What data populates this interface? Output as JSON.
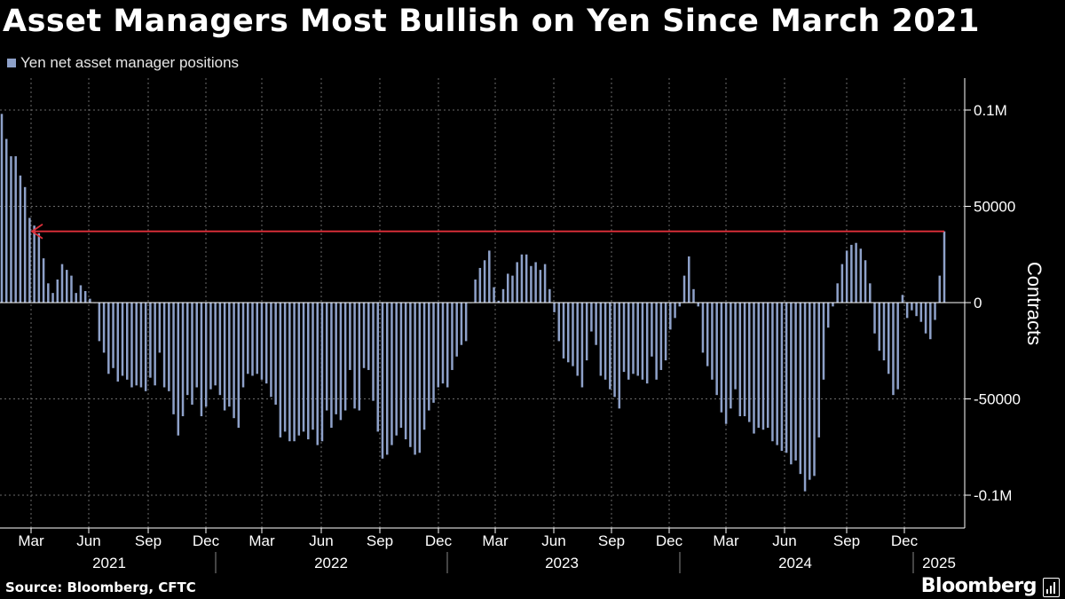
{
  "title": "Asset Managers Most Bullish on Yen Since March 2021",
  "legend_label": "Yen net asset manager positions",
  "y_axis_label": "Contracts",
  "source": "Source: Bloomberg, CFTC",
  "brand": "Bloomberg",
  "colors": {
    "bar": "#8ea1c9",
    "arrow": "#e0303a",
    "grid": "#6a6a6a",
    "axis": "#ffffff",
    "background": "#000000"
  },
  "chart_data": {
    "type": "bar",
    "ylabel": "Contracts",
    "ylim": [
      -117000,
      117000
    ],
    "yticks": [
      {
        "value": 100000,
        "label": "0.1M"
      },
      {
        "value": 50000,
        "label": "50000"
      },
      {
        "value": 0,
        "label": "0"
      },
      {
        "value": -50000,
        "label": "-50000"
      },
      {
        "value": -100000,
        "label": "-0.1M"
      }
    ],
    "month_ticks": [
      "Mar",
      "Jun",
      "Sep",
      "Dec",
      "Mar",
      "Jun",
      "Sep",
      "Dec",
      "Mar",
      "Jun",
      "Sep",
      "Dec",
      "Mar",
      "Jun",
      "Sep",
      "Dec"
    ],
    "years": [
      "2021",
      "2022",
      "2023",
      "2024",
      "2025"
    ],
    "grid": true,
    "annotation": {
      "type": "arrow",
      "value": 37000,
      "direction": "left",
      "color": "#e0303a"
    },
    "series": [
      {
        "values": [
          98000,
          85000,
          76000,
          76000,
          66000,
          60000,
          44000,
          40000,
          36000,
          23000,
          10000,
          5000,
          12000,
          20000,
          17000,
          14000,
          5000,
          9000,
          6000,
          2000,
          0,
          -20000,
          -26000,
          -37000,
          -34000,
          -41000,
          -38000,
          -40000,
          -44000,
          -43000,
          -44000,
          -46000,
          -39000,
          -43000,
          -26000,
          -44000,
          -46000,
          -58000,
          -69000,
          -59000,
          -48000,
          -53000,
          -44000,
          -59000,
          -54000,
          -45000,
          -43000,
          -48000,
          -56000,
          -54000,
          -60000,
          -65000,
          -44000,
          -37000,
          -38000,
          -37000,
          -40000,
          -42000,
          -49000,
          -53000,
          -70000,
          -67000,
          -72000,
          -72000,
          -69000,
          -67000,
          -71000,
          -66000,
          -74000,
          -72000,
          -56000,
          -65000,
          -58000,
          -61000,
          -56000,
          -35000,
          -55000,
          -56000,
          -34000,
          -35000,
          -51000,
          -67000,
          -81000,
          -79000,
          -74000,
          -69000,
          -65000,
          -71000,
          -75000,
          -79000,
          -78000,
          -66000,
          -56000,
          -52000,
          -44000,
          -42000,
          -44000,
          -35000,
          -28000,
          -22000,
          -20000,
          0,
          12000,
          18000,
          22000,
          27000,
          8000,
          1000,
          7000,
          15000,
          14000,
          21000,
          25000,
          25000,
          19000,
          21000,
          17000,
          20000,
          7000,
          -5000,
          -20000,
          -29000,
          -31000,
          -33000,
          -38000,
          -44000,
          -30000,
          -15000,
          -22000,
          -38000,
          -40000,
          -45000,
          -49000,
          -55000,
          -36000,
          -40000,
          -37000,
          -38000,
          -40000,
          -42000,
          -28000,
          -40000,
          -35000,
          -30000,
          -14000,
          -8000,
          -2000,
          14000,
          24000,
          7000,
          -2000,
          -26000,
          -33000,
          -40000,
          -48000,
          -57000,
          -63000,
          -55000,
          -45000,
          -59000,
          -59000,
          -62000,
          -68000,
          -65000,
          -66000,
          -65000,
          -72000,
          -74000,
          -77000,
          -78000,
          -84000,
          -82000,
          -89000,
          -98000,
          -92000,
          -90000,
          -70000,
          -40000,
          -13000,
          -2000,
          10000,
          20000,
          27000,
          30000,
          31000,
          28000,
          22000,
          10000,
          -16000,
          -25000,
          -30000,
          -37000,
          -48000,
          -45000,
          4000,
          -8000,
          -4000,
          -7000,
          -10000,
          -16000,
          -19000,
          -9000,
          14000,
          37000
        ]
      }
    ]
  }
}
